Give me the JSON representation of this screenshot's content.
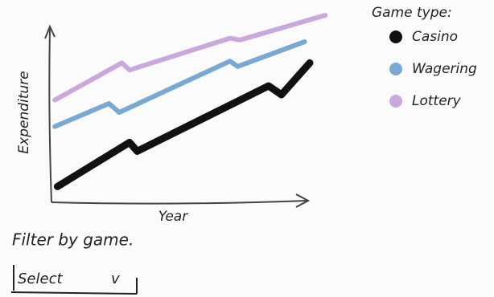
{
  "chart_data": {
    "type": "line",
    "y_label": "Expenditure",
    "x_label": "Year",
    "legend_title": "Game type:",
    "xlim": [
      0,
      110
    ],
    "ylim": [
      0,
      110
    ],
    "series": [
      {
        "name": "Casino",
        "color": "#111111",
        "x": [
          2,
          30,
          33,
          84,
          89,
          100
        ],
        "values": [
          8,
          33,
          28,
          65,
          60,
          78
        ]
      },
      {
        "name": "Wagering",
        "color": "#79a9d2",
        "x": [
          1,
          22,
          26,
          69,
          72,
          98
        ],
        "values": [
          42,
          55,
          50,
          79,
          76,
          90
        ]
      },
      {
        "name": "Lottery",
        "color": "#c8a8dd",
        "x": [
          1,
          27,
          30,
          69,
          73,
          106
        ],
        "values": [
          57,
          78,
          74,
          92,
          91,
          105
        ]
      }
    ]
  },
  "filter": {
    "label": "Filter by game.",
    "select": "Select",
    "arrow": "v"
  }
}
